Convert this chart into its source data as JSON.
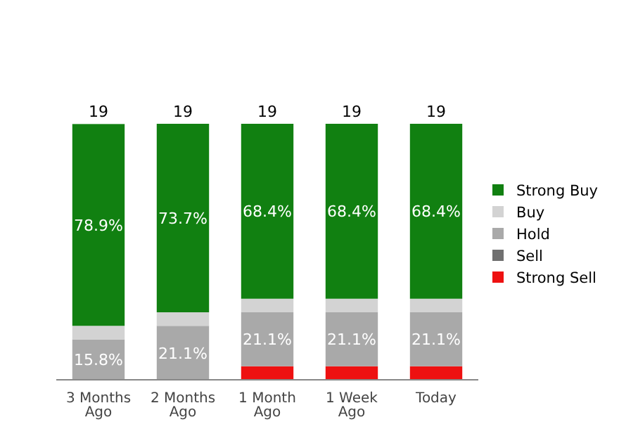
{
  "chart_data": {
    "type": "bar",
    "stacked": true,
    "legend": "right",
    "categories": [
      "3 Months Ago",
      "2 Months Ago",
      "1 Month Ago",
      "1 Week Ago",
      "Today"
    ],
    "series": [
      {
        "name": "Strong Sell",
        "color": "#ee1111",
        "values": [
          0,
          0,
          5.3,
          5.3,
          5.3
        ],
        "value_labels": [
          null,
          null,
          null,
          null,
          null
        ]
      },
      {
        "name": "Sell",
        "color": "#707070",
        "values": [
          0,
          0,
          0,
          0,
          0
        ],
        "value_labels": [
          null,
          null,
          null,
          null,
          null
        ]
      },
      {
        "name": "Hold",
        "color": "#a9a9a9",
        "values": [
          15.8,
          21.1,
          21.1,
          21.1,
          21.1
        ],
        "value_labels": [
          "15.8%",
          "21.1%",
          "21.1%",
          "21.1%",
          "21.1%"
        ]
      },
      {
        "name": "Buy",
        "color": "#d3d3d3",
        "values": [
          5.3,
          5.3,
          5.3,
          5.3,
          5.3
        ],
        "value_labels": [
          null,
          null,
          null,
          null,
          null
        ]
      },
      {
        "name": "Strong Buy",
        "color": "#118011",
        "values": [
          78.9,
          73.7,
          68.4,
          68.4,
          68.4
        ],
        "value_labels": [
          "78.9%",
          "73.7%",
          "68.4%",
          "68.4%",
          "68.4%"
        ]
      }
    ],
    "annotations": [
      {
        "text": "19",
        "x": "3 Months Ago",
        "y": 100
      },
      {
        "text": "19",
        "x": "2 Months Ago",
        "y": 100
      },
      {
        "text": "19",
        "x": "1 Month Ago",
        "y": 100
      },
      {
        "text": "19",
        "x": "1 Week Ago",
        "y": 100
      },
      {
        "text": "19",
        "x": "Today",
        "y": 100
      }
    ]
  }
}
